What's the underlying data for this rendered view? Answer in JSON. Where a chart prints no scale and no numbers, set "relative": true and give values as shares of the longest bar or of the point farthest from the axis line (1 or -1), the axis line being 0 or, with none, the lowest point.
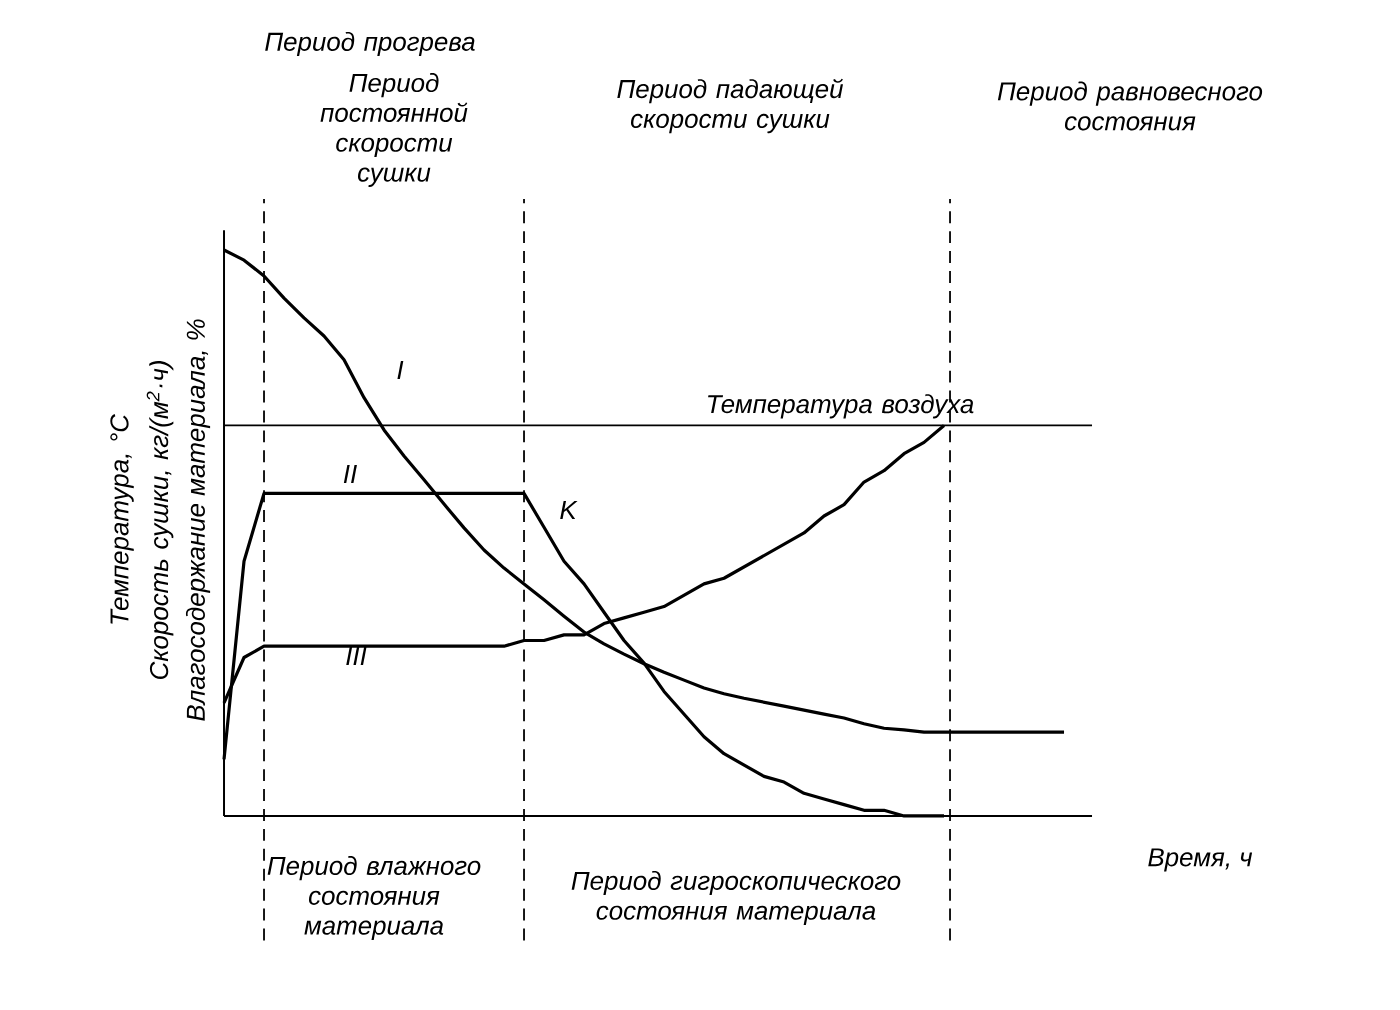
{
  "chart_data": {
    "type": "line",
    "relative": true,
    "xlabel": "Время, ч",
    "ylabel": "Влагосодержание материала, %",
    "categories": [
      null,
      null,
      null,
      null,
      null,
      null,
      null,
      null,
      null,
      null,
      null,
      null,
      null,
      null,
      null,
      null,
      null,
      null,
      null,
      null,
      null,
      null,
      null,
      null,
      null,
      null,
      null,
      null,
      null,
      null,
      null,
      null,
      null,
      null,
      null,
      null,
      null,
      null,
      null,
      null,
      null,
      null,
      null,
      null
    ],
    "series": [
      {
        "name": "I",
        "color": "#000000",
        "values": [
          1.0,
          0.982,
          0.954,
          0.915,
          0.88,
          0.848,
          0.806,
          0.739,
          0.682,
          0.636,
          0.594,
          0.551,
          0.509,
          0.47,
          0.438,
          0.41,
          0.382,
          0.353,
          0.325,
          0.304,
          0.286,
          0.269,
          0.254,
          0.24,
          0.226,
          0.216,
          0.208,
          0.201,
          0.194,
          0.187,
          0.18,
          0.173,
          0.163,
          0.155,
          0.152,
          0.148,
          0.148,
          0.148,
          0.148,
          0.148,
          0.148,
          0.148,
          0.148,
          null
        ]
      },
      {
        "name": "II",
        "color": "#000000",
        "values": [
          0.1,
          0.45,
          0.57,
          0.57,
          0.57,
          0.57,
          0.57,
          0.57,
          0.57,
          0.57,
          0.57,
          0.57,
          0.57,
          0.57,
          0.57,
          0.57,
          0.51,
          0.45,
          0.41,
          0.36,
          0.31,
          0.27,
          0.22,
          0.18,
          0.14,
          0.11,
          0.09,
          0.07,
          0.06,
          0.04,
          0.03,
          0.02,
          0.01,
          0.01,
          0,
          0,
          0,
          null,
          null,
          null,
          null,
          null,
          null,
          null
        ]
      },
      {
        "name": "III",
        "color": "#000000",
        "values": [
          0.2,
          0.28,
          0.3,
          0.3,
          0.3,
          0.3,
          0.3,
          0.3,
          0.3,
          0.3,
          0.3,
          0.3,
          0.3,
          0.3,
          0.3,
          0.31,
          0.31,
          0.32,
          0.32,
          0.34,
          0.35,
          0.36,
          0.37,
          0.39,
          0.41,
          0.42,
          0.44,
          0.46,
          0.48,
          0.5,
          0.53,
          0.55,
          0.59,
          0.61,
          0.64,
          0.66,
          0.69,
          null,
          null,
          null,
          null,
          null,
          null,
          null
        ]
      }
    ],
    "ref_lines": [
      {
        "axis": "y",
        "value": 0.69,
        "label": "Температура воздуха",
        "color": "#000000",
        "line_style": "solid"
      }
    ],
    "annotations": [
      "Период прогрева",
      "Период постоянной скорости сушки",
      "Период падающей скорости сушки",
      "Период равновесного состояния",
      "Период влажного состояния материала",
      "Период гигроскопического состояния материала",
      "Скорость сушки, кг/(м$^{2}$·ч)",
      "Температура, °С",
      "K"
    ],
    "line_style": "solid"
  }
}
